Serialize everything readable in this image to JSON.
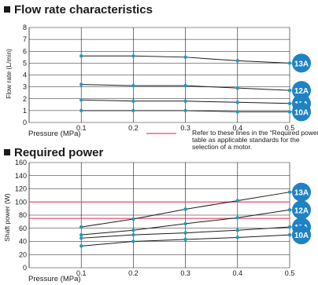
{
  "chart_data": [
    {
      "type": "line",
      "title": "Flow rate characteristics",
      "xlabel": "Pressure (MPa)",
      "ylabel": "Flow rate (L/min)",
      "x": [
        0.1,
        0.2,
        0.3,
        0.4,
        0.5
      ],
      "x_ticks": [
        "0.1",
        "0.2",
        "0.3",
        "0.4",
        "0.5"
      ],
      "xlim": [
        0.0,
        0.5
      ],
      "ylim": [
        0,
        8
      ],
      "y_ticks": [
        "0",
        "1",
        "2",
        "3",
        "4",
        "5",
        "6",
        "7",
        "8"
      ],
      "grid": true,
      "series": [
        {
          "name": "13A",
          "values": [
            5.6,
            5.6,
            5.5,
            5.2,
            5.0
          ]
        },
        {
          "name": "12A",
          "values": [
            3.2,
            3.1,
            3.1,
            2.9,
            2.7
          ]
        },
        {
          "name": "11A",
          "values": [
            1.9,
            1.8,
            1.8,
            1.7,
            1.6
          ]
        },
        {
          "name": "10A",
          "values": [
            1.0,
            1.0,
            1.0,
            0.9,
            0.9
          ]
        }
      ],
      "line_color": "#1a1a1a",
      "marker_color": "#1f9bb5"
    },
    {
      "type": "line",
      "title": "Required power",
      "xlabel": "Pressure (MPa)",
      "ylabel": "Shaft power (W)",
      "x": [
        0.1,
        0.2,
        0.3,
        0.4,
        0.5
      ],
      "x_ticks": [
        "0.1",
        "0.2",
        "0.3",
        "0.4",
        "0.5"
      ],
      "xlim": [
        0.0,
        0.5
      ],
      "ylim": [
        0,
        160
      ],
      "y_ticks": [
        "0",
        "20",
        "40",
        "60",
        "80",
        "100",
        "120",
        "140",
        "160"
      ],
      "grid": true,
      "series": [
        {
          "name": "13A",
          "values": [
            62,
            74,
            89,
            102,
            115
          ]
        },
        {
          "name": "12A",
          "values": [
            50,
            57,
            67,
            76,
            88
          ]
        },
        {
          "name": "11A",
          "values": [
            45,
            50,
            53,
            57,
            62
          ]
        },
        {
          "name": "10A",
          "values": [
            33,
            40,
            43,
            46,
            50
          ]
        }
      ],
      "reference_lines": [
        75,
        100
      ],
      "reference_color": "#e8476a",
      "line_color": "#1a1a1a",
      "marker_color": "#1f9bb5"
    }
  ],
  "note": {
    "lines": [
      "Refer to these lines in the “Required power”",
      "table as applicable standards for the",
      "selection of a motor."
    ],
    "line_color": "#e8476a"
  },
  "colors": {
    "title_square": "#1a1a1a",
    "badge_fill": "#1f82c4",
    "badge_text": "#ffffff",
    "grid": "#1a1a1a"
  }
}
